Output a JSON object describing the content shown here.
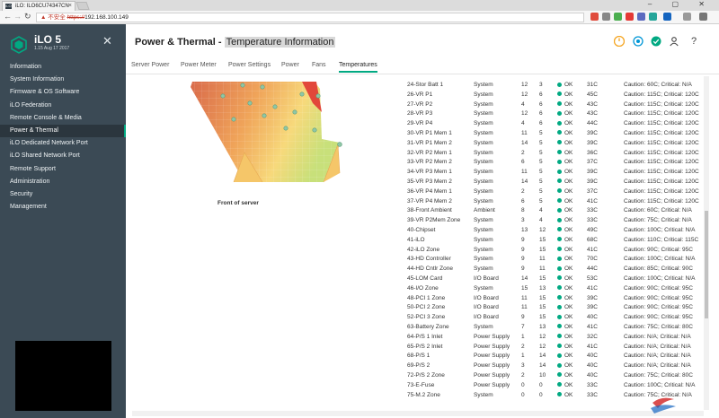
{
  "browser": {
    "tab_title": "iLO: ILO6CU74347CN",
    "favicon_text": "iLO",
    "url_warning": "▲ 不安全",
    "url_scheme": "https://",
    "url_host": "192.168.100.149",
    "window_buttons": "– ▢ ✕"
  },
  "sidebar": {
    "brand": "iLO 5",
    "version": "1.15 Aug 17 2017",
    "items": [
      {
        "label": "Information"
      },
      {
        "label": "System Information"
      },
      {
        "label": "Firmware & OS Software"
      },
      {
        "label": "iLO Federation"
      },
      {
        "label": "Remote Console & Media"
      },
      {
        "label": "Power & Thermal"
      },
      {
        "label": "iLO Dedicated Network Port"
      },
      {
        "label": "iLO Shared Network Port"
      },
      {
        "label": "Remote Support"
      },
      {
        "label": "Administration"
      },
      {
        "label": "Security"
      },
      {
        "label": "Management"
      }
    ],
    "active_index": 5
  },
  "page": {
    "title_prefix": "Power & Thermal - ",
    "title_highlight": "Temperature Information",
    "front_label": "Front of server"
  },
  "tabs": [
    {
      "label": "Server Power"
    },
    {
      "label": "Power Meter"
    },
    {
      "label": "Power Settings"
    },
    {
      "label": "Power"
    },
    {
      "label": "Fans"
    },
    {
      "label": "Temperatures"
    }
  ],
  "active_tab": 5,
  "colors": {
    "accent": "#01a982",
    "power_icon": "#f5a623",
    "health_icon": "#0096d6",
    "ok": "#01a982",
    "sidebar_bg": "#3b4a55"
  },
  "sensors": [
    {
      "name": "24-Stor Batt 1",
      "location": "System",
      "x": "12",
      "y": "3",
      "status": "OK",
      "reading": "31C",
      "thresholds": "Caution: 60C; Critical: N/A"
    },
    {
      "name": "26-VR P1",
      "location": "System",
      "x": "12",
      "y": "6",
      "status": "OK",
      "reading": "45C",
      "thresholds": "Caution: 115C; Critical: 120C"
    },
    {
      "name": "27-VR P2",
      "location": "System",
      "x": "4",
      "y": "6",
      "status": "OK",
      "reading": "43C",
      "thresholds": "Caution: 115C; Critical: 120C"
    },
    {
      "name": "28-VR P3",
      "location": "System",
      "x": "12",
      "y": "6",
      "status": "OK",
      "reading": "43C",
      "thresholds": "Caution: 115C; Critical: 120C"
    },
    {
      "name": "29-VR P4",
      "location": "System",
      "x": "4",
      "y": "6",
      "status": "OK",
      "reading": "44C",
      "thresholds": "Caution: 115C; Critical: 120C"
    },
    {
      "name": "30-VR P1 Mem 1",
      "location": "System",
      "x": "11",
      "y": "5",
      "status": "OK",
      "reading": "39C",
      "thresholds": "Caution: 115C; Critical: 120C"
    },
    {
      "name": "31-VR P1 Mem 2",
      "location": "System",
      "x": "14",
      "y": "5",
      "status": "OK",
      "reading": "39C",
      "thresholds": "Caution: 115C; Critical: 120C"
    },
    {
      "name": "32-VR P2 Mem 1",
      "location": "System",
      "x": "2",
      "y": "5",
      "status": "OK",
      "reading": "36C",
      "thresholds": "Caution: 115C; Critical: 120C"
    },
    {
      "name": "33-VR P2 Mem 2",
      "location": "System",
      "x": "6",
      "y": "5",
      "status": "OK",
      "reading": "37C",
      "thresholds": "Caution: 115C; Critical: 120C"
    },
    {
      "name": "34-VR P3 Mem 1",
      "location": "System",
      "x": "11",
      "y": "5",
      "status": "OK",
      "reading": "39C",
      "thresholds": "Caution: 115C; Critical: 120C"
    },
    {
      "name": "35-VR P3 Mem 2",
      "location": "System",
      "x": "14",
      "y": "5",
      "status": "OK",
      "reading": "39C",
      "thresholds": "Caution: 115C; Critical: 120C"
    },
    {
      "name": "36-VR P4 Mem 1",
      "location": "System",
      "x": "2",
      "y": "5",
      "status": "OK",
      "reading": "37C",
      "thresholds": "Caution: 115C; Critical: 120C"
    },
    {
      "name": "37-VR P4 Mem 2",
      "location": "System",
      "x": "6",
      "y": "5",
      "status": "OK",
      "reading": "41C",
      "thresholds": "Caution: 115C; Critical: 120C"
    },
    {
      "name": "38-Front Ambient",
      "location": "Ambient",
      "x": "8",
      "y": "4",
      "status": "OK",
      "reading": "33C",
      "thresholds": "Caution: 60C; Critical: N/A"
    },
    {
      "name": "39-VR P2Mem Zone",
      "location": "System",
      "x": "3",
      "y": "4",
      "status": "OK",
      "reading": "33C",
      "thresholds": "Caution: 75C; Critical: N/A"
    },
    {
      "name": "40-Chipset",
      "location": "System",
      "x": "13",
      "y": "12",
      "status": "OK",
      "reading": "49C",
      "thresholds": "Caution: 100C; Critical: N/A"
    },
    {
      "name": "41-iLO",
      "location": "System",
      "x": "9",
      "y": "15",
      "status": "OK",
      "reading": "68C",
      "thresholds": "Caution: 110C; Critical: 115C"
    },
    {
      "name": "42-iLO Zone",
      "location": "System",
      "x": "9",
      "y": "15",
      "status": "OK",
      "reading": "41C",
      "thresholds": "Caution: 90C; Critical: 95C"
    },
    {
      "name": "43-HD Controller",
      "location": "System",
      "x": "9",
      "y": "11",
      "status": "OK",
      "reading": "70C",
      "thresholds": "Caution: 100C; Critical: N/A"
    },
    {
      "name": "44-HD Cntlr Zone",
      "location": "System",
      "x": "9",
      "y": "11",
      "status": "OK",
      "reading": "44C",
      "thresholds": "Caution: 85C; Critical: 90C"
    },
    {
      "name": "45-LOM Card",
      "location": "I/O Board",
      "x": "14",
      "y": "15",
      "status": "OK",
      "reading": "53C",
      "thresholds": "Caution: 100C; Critical: N/A"
    },
    {
      "name": "46-I/O Zone",
      "location": "System",
      "x": "15",
      "y": "13",
      "status": "OK",
      "reading": "41C",
      "thresholds": "Caution: 90C; Critical: 95C"
    },
    {
      "name": "48-PCI 1 Zone",
      "location": "I/O Board",
      "x": "11",
      "y": "15",
      "status": "OK",
      "reading": "39C",
      "thresholds": "Caution: 90C; Critical: 95C"
    },
    {
      "name": "50-PCI 2 Zone",
      "location": "I/O Board",
      "x": "11",
      "y": "15",
      "status": "OK",
      "reading": "39C",
      "thresholds": "Caution: 90C; Critical: 95C"
    },
    {
      "name": "52-PCI 3 Zone",
      "location": "I/O Board",
      "x": "9",
      "y": "15",
      "status": "OK",
      "reading": "40C",
      "thresholds": "Caution: 90C; Critical: 95C"
    },
    {
      "name": "63-Battery Zone",
      "location": "System",
      "x": "7",
      "y": "13",
      "status": "OK",
      "reading": "41C",
      "thresholds": "Caution: 75C; Critical: 80C"
    },
    {
      "name": "64-P/S 1 Inlet",
      "location": "Power Supply",
      "x": "1",
      "y": "12",
      "status": "OK",
      "reading": "32C",
      "thresholds": "Caution: N/A; Critical: N/A"
    },
    {
      "name": "65-P/S 2 Inlet",
      "location": "Power Supply",
      "x": "2",
      "y": "12",
      "status": "OK",
      "reading": "41C",
      "thresholds": "Caution: N/A; Critical: N/A"
    },
    {
      "name": "68-P/S 1",
      "location": "Power Supply",
      "x": "1",
      "y": "14",
      "status": "OK",
      "reading": "40C",
      "thresholds": "Caution: N/A; Critical: N/A"
    },
    {
      "name": "69-P/S 2",
      "location": "Power Supply",
      "x": "3",
      "y": "14",
      "status": "OK",
      "reading": "40C",
      "thresholds": "Caution: N/A; Critical: N/A"
    },
    {
      "name": "72-P/S 2 Zone",
      "location": "Power Supply",
      "x": "2",
      "y": "10",
      "status": "OK",
      "reading": "40C",
      "thresholds": "Caution: 75C; Critical: 80C"
    },
    {
      "name": "73-E-Fuse",
      "location": "Power Supply",
      "x": "0",
      "y": "0",
      "status": "OK",
      "reading": "33C",
      "thresholds": "Caution: 100C; Critical: N/A"
    },
    {
      "name": "75-M.2 Zone",
      "location": "System",
      "x": "0",
      "y": "0",
      "status": "OK",
      "reading": "33C",
      "thresholds": "Caution: 75C; Critical: N/A"
    }
  ]
}
